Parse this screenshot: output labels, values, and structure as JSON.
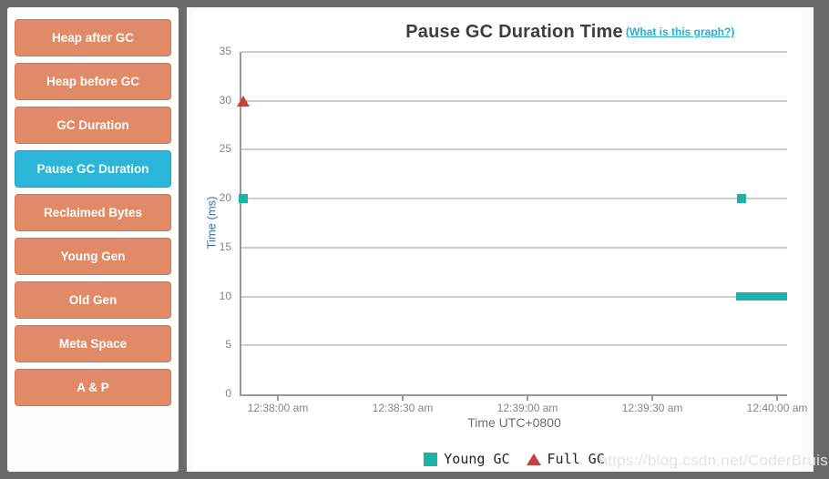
{
  "colors": {
    "sidebar_button": "#e08a68",
    "sidebar_button_border": "#d1784f",
    "active_button": "#29b6d8",
    "active_button_border": "#21a5c6",
    "link": "#29aed6",
    "young_gc": "#1ab3a8",
    "full_gc": "#c4423c",
    "y_axis_title": "#2e74b5"
  },
  "sidebar": {
    "items": [
      {
        "label": "Heap after GC",
        "active": false
      },
      {
        "label": "Heap before GC",
        "active": false
      },
      {
        "label": "GC Duration",
        "active": false
      },
      {
        "label": "Pause GC Duration",
        "active": true
      },
      {
        "label": "Reclaimed Bytes",
        "active": false
      },
      {
        "label": "Young Gen",
        "active": false
      },
      {
        "label": "Old Gen",
        "active": false
      },
      {
        "label": "Meta Space",
        "active": false
      },
      {
        "label": "A & P",
        "active": false
      }
    ]
  },
  "chart": {
    "title": "Pause GC Duration Time",
    "help_link": "(What is this graph?)",
    "xlabel": "Time UTC+0800",
    "ylabel": "Time (ms)"
  },
  "chart_data": {
    "type": "scatter",
    "title": "Pause GC Duration Time",
    "xlabel": "Time UTC+0800",
    "ylabel": "Time (ms)",
    "ylim": [
      0,
      35
    ],
    "yticks": [
      0,
      5,
      10,
      15,
      20,
      25,
      30,
      35
    ],
    "x_tick_labels": [
      "12:38:00 am",
      "12:38:30 am",
      "12:39:00 am",
      "12:39:30 am",
      "12:40:00 am"
    ],
    "x_tick_seconds": [
      0,
      30,
      60,
      90,
      120
    ],
    "x_domain_seconds": [
      -9,
      122.5
    ],
    "grid": true,
    "legend_position": "bottom",
    "series": [
      {
        "name": "Young GC",
        "marker": "square",
        "color": "#1ab3a8",
        "points": [
          {
            "time": "12:37:52 am",
            "seconds": -8.3,
            "value": 20
          },
          {
            "time": "12:39:52 am",
            "seconds": 111.5,
            "value": 20
          }
        ],
        "segments": [
          {
            "time_start": "12:39:50 am",
            "time_end": "12:40:02 am",
            "seconds_start": 110.1,
            "seconds_end": 122.4,
            "value": 10
          }
        ]
      },
      {
        "name": "Full GC",
        "marker": "triangle",
        "color": "#c4423c",
        "points": [
          {
            "time": "12:37:52 am",
            "seconds": -8.3,
            "value": 30
          }
        ],
        "segments": []
      }
    ]
  },
  "watermark": "https://blog.csdn.net/CoderBruis"
}
